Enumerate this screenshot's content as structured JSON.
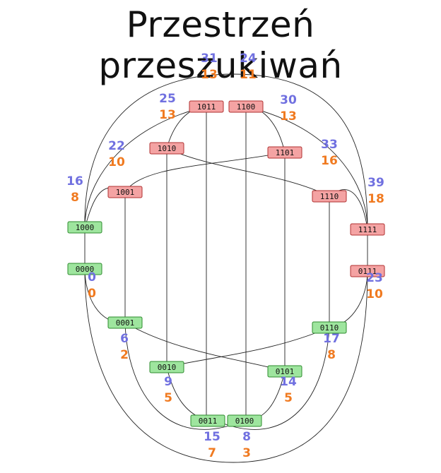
{
  "title": "Przestrzeń przeszukiwań",
  "colors": {
    "node_green_fill": "#9ee59e",
    "node_green_stroke": "#2e8b2e",
    "node_red_fill": "#f4a3a3",
    "node_red_stroke": "#b03030",
    "label_blue": "#7070e0",
    "label_orange": "#f07a20"
  },
  "nodes": [
    {
      "id": "0000",
      "label": "0000",
      "state": "green",
      "top": "0",
      "bottom": "0"
    },
    {
      "id": "1000",
      "label": "1000",
      "state": "green",
      "top": "",
      "bottom": ""
    },
    {
      "id": "0001",
      "label": "0001",
      "state": "green",
      "top": "6",
      "bottom": "2"
    },
    {
      "id": "0010",
      "label": "0010",
      "state": "green",
      "top": "9",
      "bottom": "5"
    },
    {
      "id": "0011",
      "label": "0011",
      "state": "green",
      "top": "15",
      "bottom": "7"
    },
    {
      "id": "0100",
      "label": "0100",
      "state": "green",
      "top": "8",
      "bottom": "3"
    },
    {
      "id": "0101",
      "label": "0101",
      "state": "green",
      "top": "14",
      "bottom": "5"
    },
    {
      "id": "0110",
      "label": "0110",
      "state": "green",
      "top": "17",
      "bottom": "8"
    },
    {
      "id": "0111",
      "label": "0111",
      "state": "red",
      "top": "23",
      "bottom": "10"
    },
    {
      "id": "1111",
      "label": "1111",
      "state": "red",
      "top": "39",
      "bottom": "18"
    },
    {
      "id": "1110",
      "label": "1110",
      "state": "red",
      "top": "33",
      "bottom": "16"
    },
    {
      "id": "1101",
      "label": "1101",
      "state": "red",
      "top": "30",
      "bottom": "13"
    },
    {
      "id": "1100",
      "label": "1100",
      "state": "red",
      "top": "24",
      "bottom": "11"
    },
    {
      "id": "1011",
      "label": "1011",
      "state": "red",
      "top": "31",
      "bottom": "13"
    },
    {
      "id": "1010",
      "label": "1010",
      "state": "red",
      "top": "25",
      "bottom": "13"
    },
    {
      "id": "1001",
      "label": "1001",
      "state": "red",
      "top": "22",
      "bottom": "10"
    },
    {
      "id": "1000v",
      "label": "",
      "state": "",
      "top": "16",
      "bottom": "8"
    }
  ]
}
